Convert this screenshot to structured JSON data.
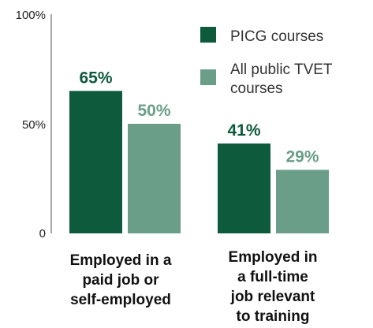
{
  "chart_data": {
    "type": "bar",
    "title": "",
    "xlabel": "",
    "ylabel": "",
    "ylim": [
      0,
      100
    ],
    "yticks": [
      "100%",
      "50%",
      "0"
    ],
    "categories": [
      [
        "Employed in a",
        "paid job or",
        "self-employed"
      ],
      [
        "Employed in",
        "a full-time",
        "job relevant",
        "to training"
      ]
    ],
    "series": [
      {
        "name": "PICG courses",
        "values": [
          65,
          41
        ],
        "labels": [
          "65%",
          "41%"
        ],
        "color": "#0e5a3d"
      },
      {
        "name": "All public TVET courses",
        "legend_lines": [
          "All public TVET",
          "courses"
        ],
        "values": [
          50,
          29
        ],
        "labels": [
          "50%",
          "29%"
        ],
        "color": "#6a9e89"
      }
    ],
    "legend": "top-right",
    "grid": false
  }
}
